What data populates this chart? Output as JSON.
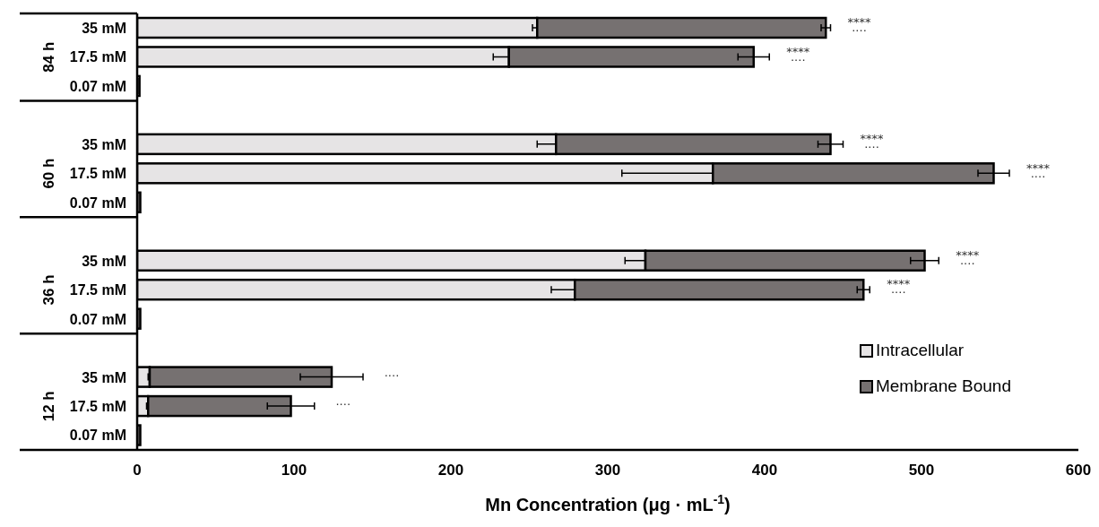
{
  "chart_data": {
    "type": "bar",
    "orientation": "horizontal",
    "stacked": true,
    "xlabel": "Mn Concentration (μg · mL$^{-1}$)",
    "categories": [
      "35 mM",
      "17.5 mM",
      "0.07 mM",
      null,
      "35 mM",
      "17.5 mM",
      "0.07 mM",
      null,
      "35 mM",
      "17.5 mM",
      "0.07 mM",
      null,
      "35 mM",
      "17.5 mM",
      "0.07 mM"
    ],
    "series": [
      {
        "name": "Intracellular",
        "color": "#e6e4e5",
        "values": [
          255,
          237,
          null,
          null,
          267,
          367,
          null,
          null,
          324,
          279,
          null,
          null,
          8,
          7,
          null
        ],
        "errors": [
          3,
          10,
          null,
          null,
          12,
          58,
          null,
          null,
          13,
          15,
          null,
          null,
          1,
          1,
          null
        ]
      },
      {
        "name": "Membrane Bound",
        "color": "#767171",
        "values": [
          184,
          156,
          1.5,
          null,
          175,
          179,
          2,
          null,
          178,
          184,
          2,
          null,
          116,
          91,
          2
        ],
        "errors": [
          3,
          10,
          null,
          null,
          8,
          10,
          null,
          null,
          9,
          4,
          null,
          null,
          20,
          15,
          null
        ]
      }
    ],
    "xlim": [
      0,
      600
    ],
    "xticks": [
      0,
      100,
      200,
      300,
      400,
      500,
      600
    ],
    "legend": "bottom right",
    "grid": false,
    "annotations": [
      "84 h",
      "60 h",
      "36 h",
      "12 h",
      "****\n····",
      "****\n····",
      "****\n····",
      "****\n····",
      "****\n····",
      "****\n····",
      "····",
      "····"
    ]
  }
}
